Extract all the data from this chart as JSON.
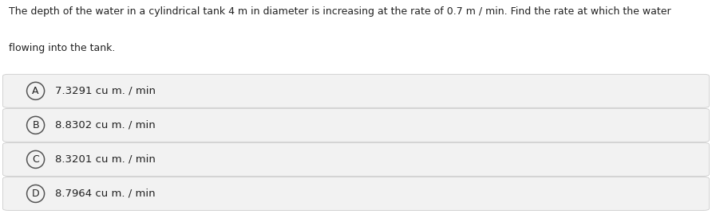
{
  "question_line1": "The depth of the water in a cylindrical tank 4 m in diameter is increasing at the rate of 0.7 m / min. Find the rate at which the water",
  "question_line2": "flowing into the tank.",
  "options": [
    {
      "label": "A",
      "text": "7.3291 cu m. / min"
    },
    {
      "label": "B",
      "text": "8.8302 cu m. / min"
    },
    {
      "label": "C",
      "text": "8.3201 cu m. / min"
    },
    {
      "label": "D",
      "text": "8.7964 cu m. / min"
    }
  ],
  "bg_color": "#ffffff",
  "option_bg_color": "#f2f2f2",
  "option_border_color": "#cccccc",
  "text_color": "#222222",
  "circle_edge_color": "#555555",
  "question_fontsize": 9.0,
  "option_fontsize": 9.5,
  "fig_width": 8.92,
  "fig_height": 2.69
}
